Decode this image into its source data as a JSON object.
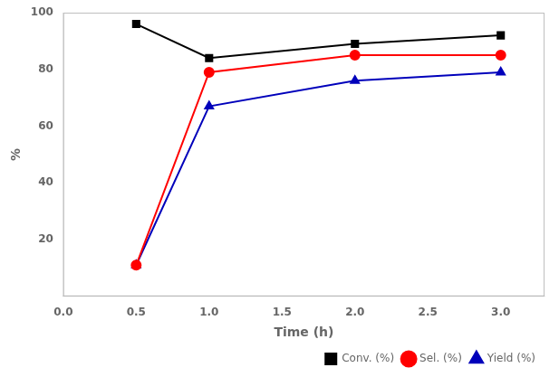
{
  "chart_data": {
    "type": "line",
    "x": [
      0.5,
      1.0,
      2.0,
      3.0
    ],
    "series": [
      {
        "name": "Conv. (%)",
        "color": "#000000",
        "marker": "square",
        "values": [
          96,
          84,
          89,
          92
        ]
      },
      {
        "name": "Sel. (%)",
        "color": "#ff0000",
        "marker": "circle",
        "values": [
          11,
          79,
          85,
          85
        ]
      },
      {
        "name": "Yield (%)",
        "color": "#0000bb",
        "marker": "triangle",
        "values": [
          11,
          67,
          76,
          79
        ]
      }
    ],
    "x_label": "Time (h)",
    "y_label": "%",
    "xlim": [
      0.0,
      3.3
    ],
    "ylim": [
      0,
      100
    ],
    "xticks": [
      {
        "value": 0.0,
        "label": "0.0"
      },
      0.5,
      {
        "value": 1.0,
        "label": "1.0"
      },
      1.5,
      {
        "value": 2.0,
        "label": "2.0"
      },
      2.5,
      {
        "value": 3.0,
        "label": "3.0"
      }
    ],
    "yticks": [
      20,
      40,
      60,
      80,
      100
    ],
    "grid": false,
    "legend": "lower right"
  }
}
